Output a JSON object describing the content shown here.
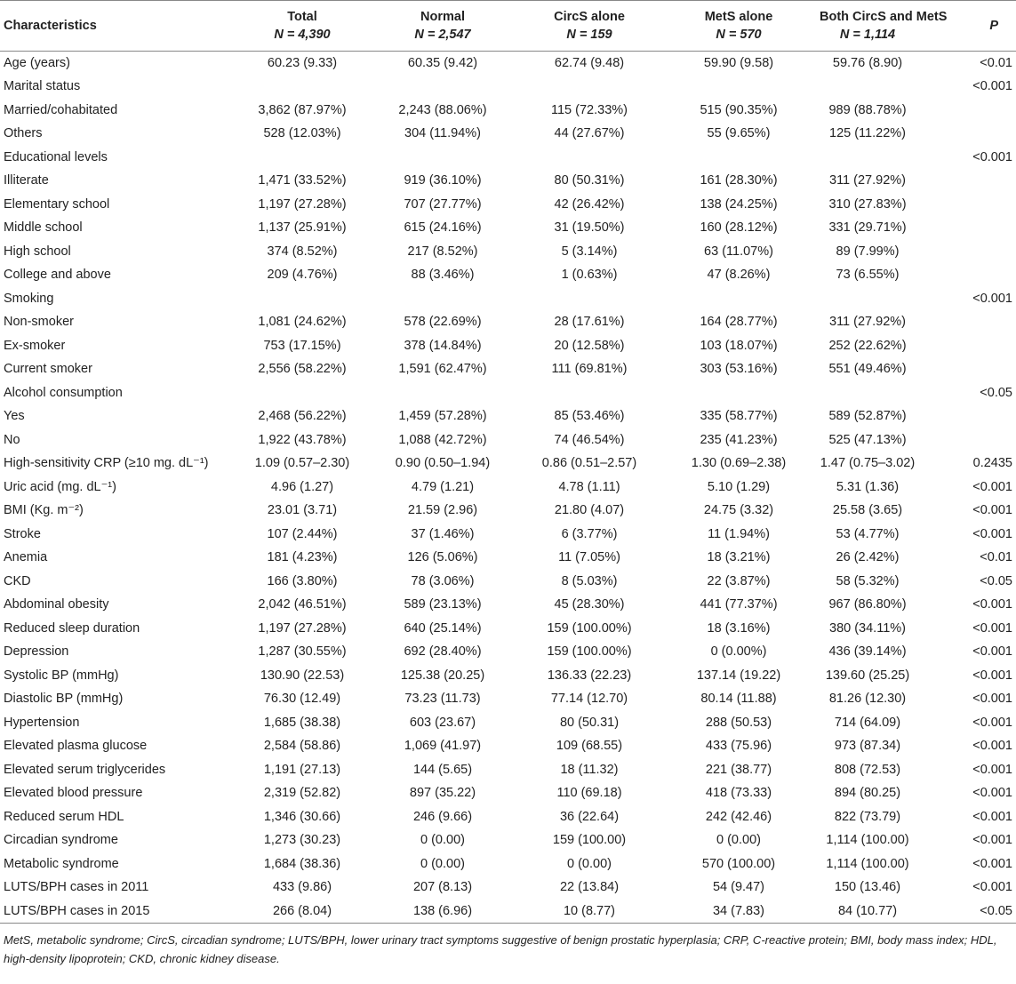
{
  "table": {
    "columns": [
      {
        "name": "Characteristics"
      },
      {
        "name": "Total",
        "n": "N = 4,390"
      },
      {
        "name": "Normal",
        "n": "N = 2,547"
      },
      {
        "name": "CircS alone",
        "n": "N = 159"
      },
      {
        "name": "MetS alone",
        "n": "N = 570"
      },
      {
        "name": "Both CircS and MetS",
        "n": "N = 1,114"
      },
      {
        "name": "P"
      }
    ],
    "rows": [
      [
        "Age (years)",
        "60.23 (9.33)",
        "60.35 (9.42)",
        "62.74 (9.48)",
        "59.90 (9.58)",
        "59.76 (8.90)",
        "<0.01"
      ],
      [
        "Marital status",
        null,
        null,
        null,
        null,
        null,
        "<0.001"
      ],
      [
        "Married/cohabitated",
        "3,862 (87.97%)",
        "2,243 (88.06%)",
        "115 (72.33%)",
        "515 (90.35%)",
        "989 (88.78%)",
        null
      ],
      [
        "Others",
        "528 (12.03%)",
        "304 (11.94%)",
        "44 (27.67%)",
        "55 (9.65%)",
        "125 (11.22%)",
        null
      ],
      [
        "Educational levels",
        null,
        null,
        null,
        null,
        null,
        "<0.001"
      ],
      [
        "Illiterate",
        "1,471 (33.52%)",
        "919 (36.10%)",
        "80 (50.31%)",
        "161 (28.30%)",
        "311 (27.92%)",
        null
      ],
      [
        "Elementary school",
        "1,197 (27.28%)",
        "707 (27.77%)",
        "42 (26.42%)",
        "138 (24.25%)",
        "310 (27.83%)",
        null
      ],
      [
        "Middle school",
        "1,137 (25.91%)",
        "615 (24.16%)",
        "31 (19.50%)",
        "160 (28.12%)",
        "331 (29.71%)",
        null
      ],
      [
        "High school",
        "374 (8.52%)",
        "217 (8.52%)",
        "5 (3.14%)",
        "63 (11.07%)",
        "89 (7.99%)",
        null
      ],
      [
        "College and above",
        "209 (4.76%)",
        "88 (3.46%)",
        "1 (0.63%)",
        "47 (8.26%)",
        "73 (6.55%)",
        null
      ],
      [
        "Smoking",
        null,
        null,
        null,
        null,
        null,
        "<0.001"
      ],
      [
        "Non-smoker",
        "1,081 (24.62%)",
        "578 (22.69%)",
        "28 (17.61%)",
        "164 (28.77%)",
        "311 (27.92%)",
        null
      ],
      [
        "Ex-smoker",
        "753 (17.15%)",
        "378 (14.84%)",
        "20 (12.58%)",
        "103 (18.07%)",
        "252 (22.62%)",
        null
      ],
      [
        "Current smoker",
        "2,556 (58.22%)",
        "1,591 (62.47%)",
        "111 (69.81%)",
        "303 (53.16%)",
        "551 (49.46%)",
        null
      ],
      [
        "Alcohol consumption",
        null,
        null,
        null,
        null,
        null,
        "<0.05"
      ],
      [
        "Yes",
        "2,468 (56.22%)",
        "1,459 (57.28%)",
        "85 (53.46%)",
        "335 (58.77%)",
        "589 (52.87%)",
        null
      ],
      [
        "No",
        "1,922 (43.78%)",
        "1,088 (42.72%)",
        "74 (46.54%)",
        "235 (41.23%)",
        "525 (47.13%)",
        null
      ],
      [
        "High-sensitivity CRP (≥10 mg. dL⁻¹)",
        "1.09 (0.57–2.30)",
        "0.90 (0.50–1.94)",
        "0.86 (0.51–2.57)",
        "1.30 (0.69–2.38)",
        "1.47 (0.75–3.02)",
        "0.2435"
      ],
      [
        "Uric acid (mg. dL⁻¹)",
        "4.96 (1.27)",
        "4.79 (1.21)",
        "4.78 (1.11)",
        "5.10 (1.29)",
        "5.31 (1.36)",
        "<0.001"
      ],
      [
        "BMI (Kg. m⁻²)",
        "23.01 (3.71)",
        "21.59 (2.96)",
        "21.80 (4.07)",
        "24.75 (3.32)",
        "25.58 (3.65)",
        "<0.001"
      ],
      [
        "Stroke",
        "107 (2.44%)",
        "37 (1.46%)",
        "6 (3.77%)",
        "11 (1.94%)",
        "53 (4.77%)",
        "<0.001"
      ],
      [
        "Anemia",
        "181 (4.23%)",
        "126 (5.06%)",
        "11 (7.05%)",
        "18 (3.21%)",
        "26 (2.42%)",
        "<0.01"
      ],
      [
        "CKD",
        "166 (3.80%)",
        "78 (3.06%)",
        "8 (5.03%)",
        "22 (3.87%)",
        "58 (5.32%)",
        "<0.05"
      ],
      [
        "Abdominal obesity",
        "2,042 (46.51%)",
        "589 (23.13%)",
        "45 (28.30%)",
        "441 (77.37%)",
        "967 (86.80%)",
        "<0.001"
      ],
      [
        "Reduced sleep duration",
        "1,197 (27.28%)",
        "640 (25.14%)",
        "159 (100.00%)",
        "18 (3.16%)",
        "380 (34.11%)",
        "<0.001"
      ],
      [
        "Depression",
        "1,287 (30.55%)",
        "692 (28.40%)",
        "159 (100.00%)",
        "0 (0.00%)",
        "436 (39.14%)",
        "<0.001"
      ],
      [
        "Systolic BP (mmHg)",
        "130.90 (22.53)",
        "125.38 (20.25)",
        "136.33 (22.23)",
        "137.14 (19.22)",
        "139.60 (25.25)",
        "<0.001"
      ],
      [
        "Diastolic BP (mmHg)",
        "76.30 (12.49)",
        "73.23 (11.73)",
        "77.14 (12.70)",
        "80.14 (11.88)",
        "81.26 (12.30)",
        "<0.001"
      ],
      [
        "Hypertension",
        "1,685 (38.38)",
        "603 (23.67)",
        "80 (50.31)",
        "288 (50.53)",
        "714 (64.09)",
        "<0.001"
      ],
      [
        "Elevated plasma glucose",
        "2,584 (58.86)",
        "1,069 (41.97)",
        "109 (68.55)",
        "433 (75.96)",
        "973 (87.34)",
        "<0.001"
      ],
      [
        "Elevated serum triglycerides",
        "1,191 (27.13)",
        "144 (5.65)",
        "18 (11.32)",
        "221 (38.77)",
        "808 (72.53)",
        "<0.001"
      ],
      [
        "Elevated blood pressure",
        "2,319 (52.82)",
        "897 (35.22)",
        "110 (69.18)",
        "418 (73.33)",
        "894 (80.25)",
        "<0.001"
      ],
      [
        "Reduced serum HDL",
        "1,346 (30.66)",
        "246 (9.66)",
        "36 (22.64)",
        "242 (42.46)",
        "822 (73.79)",
        "<0.001"
      ],
      [
        "Circadian syndrome",
        "1,273 (30.23)",
        "0 (0.00)",
        "159 (100.00)",
        "0 (0.00)",
        "1,114 (100.00)",
        "<0.001"
      ],
      [
        "Metabolic syndrome",
        "1,684 (38.36)",
        "0 (0.00)",
        "0 (0.00)",
        "570 (100.00)",
        "1,114 (100.00)",
        "<0.001"
      ],
      [
        "LUTS/BPH cases in 2011",
        "433 (9.86)",
        "207 (8.13)",
        "22 (13.84)",
        "54 (9.47)",
        "150 (13.46)",
        "<0.001"
      ],
      [
        "LUTS/BPH cases in 2015",
        "266 (8.04)",
        "138 (6.96)",
        "10 (8.77)",
        "34 (7.83)",
        "84 (10.77)",
        "<0.05"
      ]
    ]
  },
  "footnote": "MetS, metabolic syndrome; CircS, circadian syndrome; LUTS/BPH, lower urinary tract symptoms suggestive of benign prostatic hyperplasia; CRP, C-reactive protein; BMI, body mass index; HDL, high-density lipoprotein; CKD, chronic kidney disease."
}
